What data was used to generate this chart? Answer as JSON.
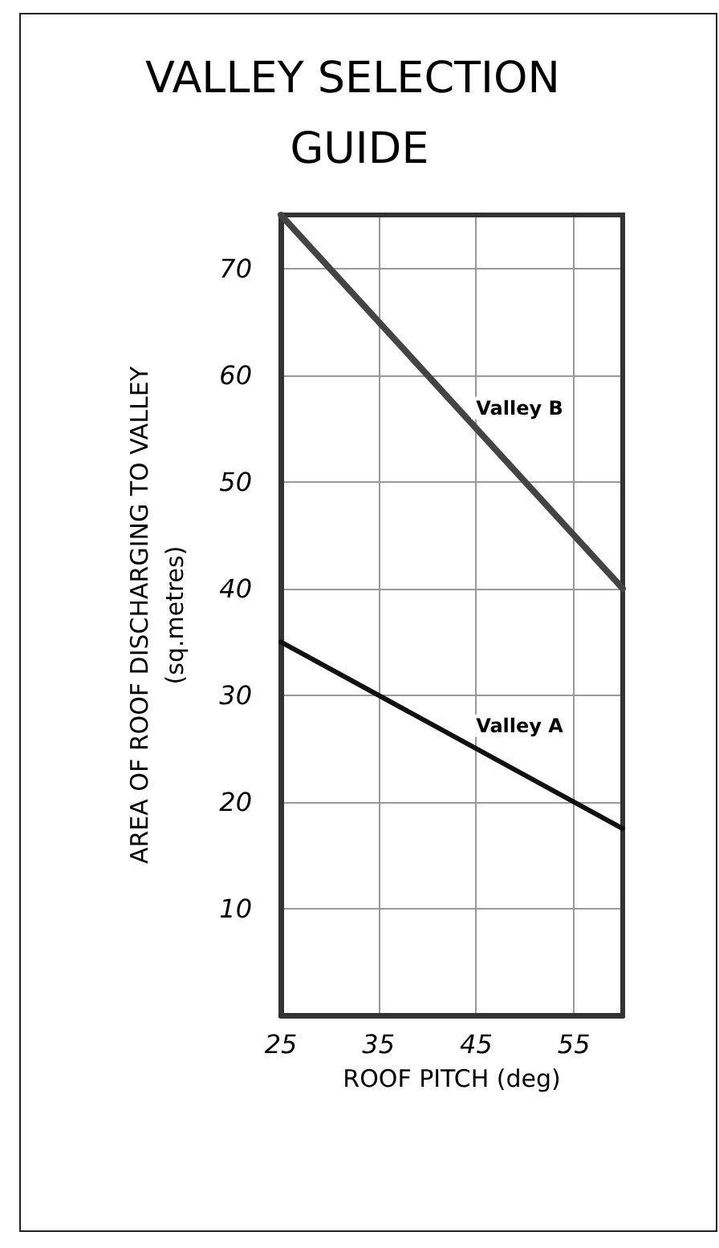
{
  "chart_data": {
    "type": "line",
    "title": "VALLEY SELECTION GUIDE",
    "xlabel": "ROOF PITCH (deg)",
    "ylabel": "AREA OF ROOF DISCHARGING TO VALLEY\n(sq.metres)",
    "x": [
      25,
      60
    ],
    "series": [
      {
        "name": "Valley B",
        "color": "#444444",
        "values": [
          75,
          40
        ]
      },
      {
        "name": "Valley A",
        "color": "#111111",
        "values": [
          35,
          17.5
        ]
      }
    ],
    "xlim": [
      25,
      60
    ],
    "xticks": [
      25,
      35,
      45,
      55
    ],
    "ylim": [
      0,
      75
    ],
    "yticks": [
      10,
      20,
      30,
      40,
      50,
      60,
      70
    ],
    "grid": true,
    "legend": false,
    "marker": "none",
    "line_style": "solid"
  }
}
